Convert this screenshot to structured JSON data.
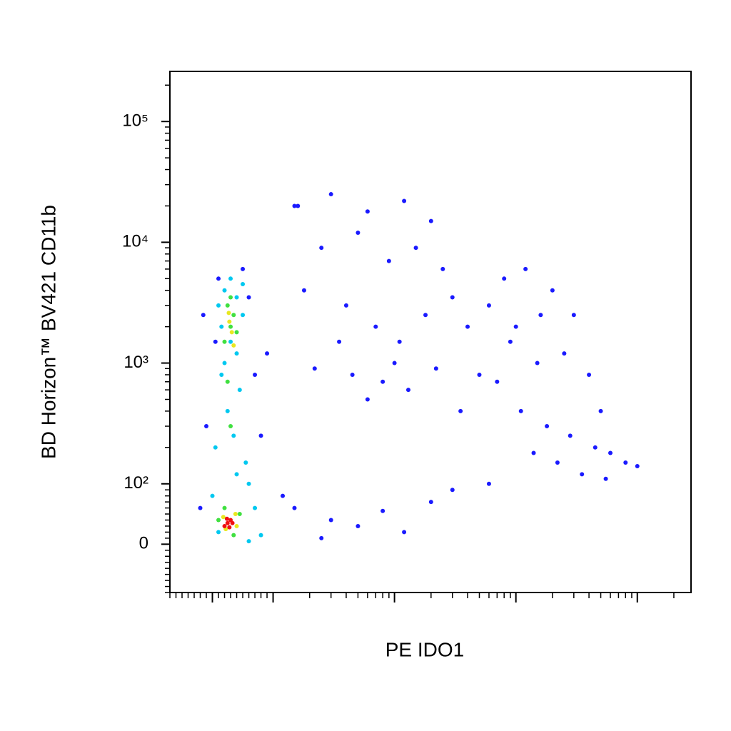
{
  "chart_data": {
    "type": "scatter",
    "x_label": "PE IDO1",
    "y_label": "BD Horizon™ BV421 CD11b",
    "xscale": "biexponential",
    "yscale": "biexponential",
    "xlim": [
      -70,
      277000
    ],
    "ylim": [
      -80,
      260000
    ],
    "xticks": [
      0,
      100,
      1000,
      10000,
      100000
    ],
    "yticks": [
      0,
      {
        "value": 100,
        "label": "10²"
      },
      {
        "value": 1000,
        "label": "10³"
      },
      {
        "value": 10000,
        "label": "10⁴"
      },
      {
        "value": 100000,
        "label": "10⁵"
      }
    ],
    "series": [
      {
        "color": "#1a1aff",
        "x": [
          -20,
          -10,
          5,
          60,
          70,
          -15,
          80,
          50,
          10,
          90,
          150,
          300,
          600,
          1200,
          2000,
          250,
          500,
          900,
          1500,
          2500,
          180,
          400,
          700,
          1100,
          1800,
          3000,
          220,
          450,
          800,
          1300,
          2200,
          350,
          600,
          1000,
          4000,
          5000,
          3500,
          160,
          6000,
          8000,
          12000,
          20000,
          30000,
          9000,
          15000,
          25000,
          40000,
          7000,
          11000,
          18000,
          28000,
          45000,
          60000,
          80000,
          100000,
          14000,
          22000,
          35000,
          55000,
          10000,
          16000,
          50000,
          150,
          300,
          500,
          800,
          1200,
          250,
          2000,
          3000,
          6000,
          120
        ],
        "values": [
          60,
          300,
          1500,
          3500,
          800,
          2500,
          250,
          6000,
          5000,
          1200,
          20000,
          25000,
          18000,
          22000,
          15000,
          9000,
          12000,
          7000,
          9000,
          6000,
          4000,
          3000,
          2000,
          1500,
          2500,
          3500,
          900,
          800,
          700,
          600,
          900,
          1500,
          500,
          1000,
          2000,
          800,
          400,
          20000,
          3000,
          5000,
          6000,
          4000,
          2500,
          1500,
          1000,
          1200,
          800,
          700,
          400,
          300,
          250,
          200,
          180,
          150,
          140,
          180,
          150,
          120,
          110,
          2000,
          2500,
          400,
          60,
          40,
          30,
          55,
          20,
          10,
          70,
          90,
          100,
          80
        ]
      },
      {
        "color": "#00c8f0",
        "x": [
          20,
          40,
          10,
          50,
          30,
          15,
          45,
          25,
          35,
          5,
          55,
          40,
          60,
          20,
          50,
          0,
          70,
          10,
          80,
          60,
          15,
          40,
          30
        ],
        "values": [
          4000,
          3500,
          3000,
          2500,
          1500,
          800,
          600,
          400,
          250,
          200,
          150,
          120,
          100,
          1000,
          4500,
          80,
          60,
          20,
          15,
          5,
          2000,
          1200,
          5000
        ]
      },
      {
        "color": "#40e040",
        "x": [
          25,
          35,
          30,
          20,
          40,
          30,
          25,
          30,
          20,
          45,
          10,
          35
        ],
        "values": [
          3000,
          2500,
          2000,
          1500,
          1800,
          3500,
          700,
          300,
          60,
          50,
          40,
          15
        ]
      },
      {
        "color": "#e8e820",
        "x": [
          28,
          32,
          27,
          35,
          18,
          40,
          22,
          38
        ],
        "values": [
          2200,
          1800,
          2600,
          1400,
          45,
          30,
          25,
          50
        ]
      },
      {
        "color": "#f01010",
        "x": [
          25,
          30,
          20,
          28,
          33,
          24
        ],
        "values": [
          35,
          40,
          30,
          28,
          35,
          42
        ]
      }
    ]
  }
}
